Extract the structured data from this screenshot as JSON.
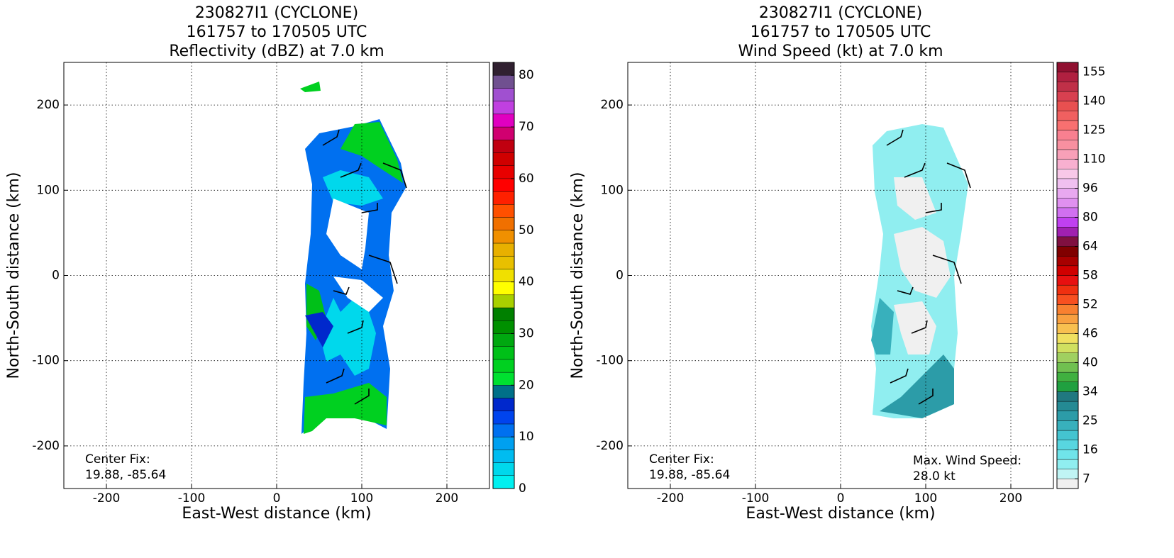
{
  "chart_data": [
    {
      "type": "heatmap",
      "title": [
        "230827I1 (CYCLONE)",
        "161757 to 170505 UTC",
        "Reflectivity (dBZ) at 7.0 km"
      ],
      "xlabel": "East-West distance (km)",
      "ylabel": "North-South distance (km)",
      "xlim": [
        -250,
        250
      ],
      "ylim": [
        -250,
        250
      ],
      "xticks": [
        -200,
        -100,
        0,
        100,
        200
      ],
      "yticks": [
        -200,
        -100,
        0,
        100,
        200
      ],
      "grid": true,
      "annotations": [
        "Center Fix:",
        "19.88, -85.64"
      ],
      "colorbar": {
        "levels": [
          0,
          2.5,
          5,
          7.5,
          10,
          12.5,
          15,
          17.5,
          20,
          22.5,
          25,
          27.5,
          30,
          32.5,
          35,
          37.5,
          40,
          42.5,
          45,
          47.5,
          50,
          52.5,
          55,
          57.5,
          60,
          62.5,
          65,
          67.5,
          70,
          72.5,
          75,
          77.5,
          80
        ],
        "colors": [
          "#00f0f0",
          "#00d8ec",
          "#00bcf0",
          "#00a0f0",
          "#0070f0",
          "#0044ee",
          "#0028cc",
          "#007088",
          "#00e030",
          "#00d020",
          "#00c018",
          "#00a810",
          "#009000",
          "#008000",
          "#a8d000",
          "#ffff00",
          "#f0e000",
          "#e8c000",
          "#e8b000",
          "#f09000",
          "#f07000",
          "#ff5000",
          "#ff2000",
          "#ff0000",
          "#e80000",
          "#d00000",
          "#c00010",
          "#d00070",
          "#e000c0",
          "#c040e0",
          "#a050d0",
          "#705090",
          "#302030"
        ],
        "ticks": [
          0,
          10,
          20,
          30,
          40,
          50,
          60,
          70,
          80
        ]
      }
    },
    {
      "type": "heatmap",
      "title": [
        "230827I1 (CYCLONE)",
        "161757 to 170505 UTC",
        "Wind Speed (kt) at 7.0 km"
      ],
      "xlabel": "East-West distance (km)",
      "ylabel": "North-South distance (km)",
      "xlim": [
        -250,
        250
      ],
      "ylim": [
        -250,
        250
      ],
      "xticks": [
        -200,
        -100,
        0,
        100,
        200
      ],
      "yticks": [
        -200,
        -100,
        0,
        100,
        200
      ],
      "grid": true,
      "annotations": [
        "Center Fix:",
        "19.88, -85.64",
        "Max. Wind Speed:",
        "28.0 kt"
      ],
      "colorbar": {
        "levels": [
          4,
          7,
          10,
          13,
          16,
          19,
          22,
          25,
          28,
          31,
          34,
          36,
          38,
          40,
          42,
          44,
          46,
          48,
          50,
          52,
          54,
          56,
          58,
          60,
          62,
          64,
          69,
          75,
          80,
          85,
          91,
          96,
          101,
          106,
          110,
          115,
          120,
          125,
          130,
          135,
          140,
          145,
          150,
          155,
          160
        ],
        "colors": [
          "#f0f0f0",
          "#c0f4f4",
          "#90eef0",
          "#70e4ea",
          "#58d6e0",
          "#44c4d0",
          "#38b0bc",
          "#2c9ca8",
          "#248a94",
          "#207880",
          "#20a040",
          "#40b040",
          "#70c050",
          "#a0d060",
          "#d0e060",
          "#f0e060",
          "#f8c050",
          "#f8a040",
          "#f88030",
          "#f85020",
          "#f03010",
          "#e81010",
          "#d00000",
          "#a80000",
          "#800000",
          "#801040",
          "#a020b0",
          "#c040f0",
          "#d070f0",
          "#e090f0",
          "#e8a8f0",
          "#f0c0f0",
          "#f8c8e8",
          "#f8b0d0",
          "#f8a0b8",
          "#f890a0",
          "#f88090",
          "#f87070",
          "#f06060",
          "#e85050",
          "#d84050",
          "#c03048",
          "#b02040",
          "#901030"
        ],
        "ticks": [
          7,
          16,
          25,
          34,
          40,
          46,
          52,
          58,
          64,
          80,
          96,
          110,
          125,
          140,
          155
        ]
      }
    }
  ]
}
